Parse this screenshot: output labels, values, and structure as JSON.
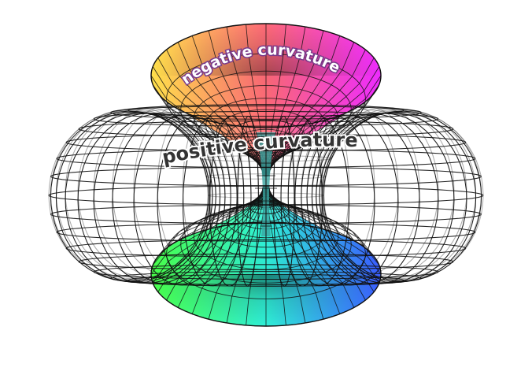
{
  "labels": {
    "negative": "negative curvature",
    "positive": "positive curvature"
  },
  "colors": {
    "background": "#ffffff",
    "mesh": "#111111",
    "negative_label_fill": "#ffffff",
    "negative_label_stroke": "#7a3a8a",
    "positive_label_fill": "#333333",
    "positive_label_stroke": "#ffffff",
    "top_funnel_left": "#ffe14a",
    "top_funnel_mid": "#ff6a78",
    "top_funnel_right": "#ee2bff",
    "bottom_funnel_left": "#48ff48",
    "bottom_funnel_mid": "#2ff0d8",
    "bottom_funnel_right": "#3a5cff"
  },
  "figure": {
    "type": "torus-with-pseudosphere-funnels",
    "outer_surface": "wireframe torus",
    "inner_surface": "double funnel (pseudosphere-like)"
  }
}
